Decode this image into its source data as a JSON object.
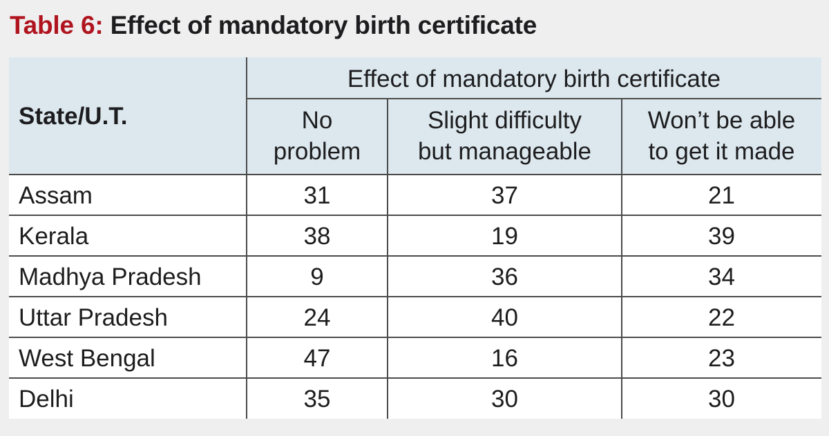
{
  "title": {
    "number": "Table 6:",
    "text": "Effect of mandatory birth certificate"
  },
  "header": {
    "group_label": "Effect of mandatory birth certificate",
    "state_label": "State/U.T.",
    "col1_line1": "No",
    "col1_line2": "problem",
    "col2_line1": "Slight difficulty",
    "col2_line2": "but manageable",
    "col3_line1": "Won’t be able",
    "col3_line2": "to get it made"
  },
  "rows": [
    {
      "state": "Assam",
      "no_problem": "31",
      "slight_difficulty": "37",
      "wont_be_able": "21"
    },
    {
      "state": "Kerala",
      "no_problem": "38",
      "slight_difficulty": "19",
      "wont_be_able": "39"
    },
    {
      "state": "Madhya Pradesh",
      "no_problem": "9",
      "slight_difficulty": "36",
      "wont_be_able": "34"
    },
    {
      "state": "Uttar Pradesh",
      "no_problem": "24",
      "slight_difficulty": "40",
      "wont_be_able": "22"
    },
    {
      "state": "West Bengal",
      "no_problem": "47",
      "slight_difficulty": "16",
      "wont_be_able": "23"
    },
    {
      "state": "Delhi",
      "no_problem": "35",
      "slight_difficulty": "30",
      "wont_be_able": "30"
    }
  ],
  "colors": {
    "title_accent": "#b0141e",
    "header_background": "#dce8ee",
    "body_background": "#ffffff",
    "page_background": "#efeff0"
  },
  "chart_data": {
    "type": "table",
    "title": "Table 6: Effect of mandatory birth certificate",
    "columns": [
      "State/U.T.",
      "No problem",
      "Slight difficulty but manageable",
      "Won’t be able to get it made"
    ],
    "categories": [
      "Assam",
      "Kerala",
      "Madhya Pradesh",
      "Uttar Pradesh",
      "West Bengal",
      "Delhi"
    ],
    "series": [
      {
        "name": "No problem",
        "values": [
          31,
          38,
          9,
          24,
          47,
          35
        ]
      },
      {
        "name": "Slight difficulty but manageable",
        "values": [
          37,
          19,
          36,
          40,
          16,
          30
        ]
      },
      {
        "name": "Won’t be able to get it made",
        "values": [
          21,
          39,
          34,
          22,
          23,
          30
        ]
      }
    ]
  }
}
